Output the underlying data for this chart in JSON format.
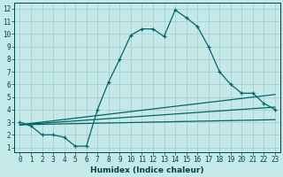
{
  "xlabel": "Humidex (Indice chaleur)",
  "bg_color": "#c5e8e8",
  "line_color": "#006666",
  "grid_color": "#a8d0d0",
  "xlim": [
    -0.5,
    23.5
  ],
  "ylim": [
    0.6,
    12.5
  ],
  "xticks": [
    0,
    1,
    2,
    3,
    4,
    5,
    6,
    7,
    8,
    9,
    10,
    11,
    12,
    13,
    14,
    15,
    16,
    17,
    18,
    19,
    20,
    21,
    22,
    23
  ],
  "yticks": [
    1,
    2,
    3,
    4,
    5,
    6,
    7,
    8,
    9,
    10,
    11,
    12
  ],
  "line1_x": [
    0,
    1,
    2,
    3,
    4,
    5,
    6,
    7,
    8,
    9,
    10,
    11,
    12,
    13,
    14,
    15,
    16,
    17,
    18,
    19,
    20,
    21,
    22,
    23
  ],
  "line1_y": [
    3.0,
    2.7,
    2.0,
    2.0,
    1.8,
    1.1,
    1.1,
    4.0,
    6.2,
    8.0,
    9.9,
    10.4,
    10.4,
    9.8,
    11.9,
    11.3,
    10.6,
    9.0,
    7.0,
    6.0,
    5.3,
    5.3,
    4.5,
    4.0
  ],
  "line2_x": [
    0,
    23
  ],
  "line2_y": [
    2.8,
    5.2
  ],
  "line3_x": [
    0,
    23
  ],
  "line3_y": [
    2.8,
    4.2
  ],
  "line4_x": [
    0,
    23
  ],
  "line4_y": [
    2.8,
    3.2
  ],
  "tick_fontsize": 5.5,
  "xlabel_fontsize": 6.5
}
